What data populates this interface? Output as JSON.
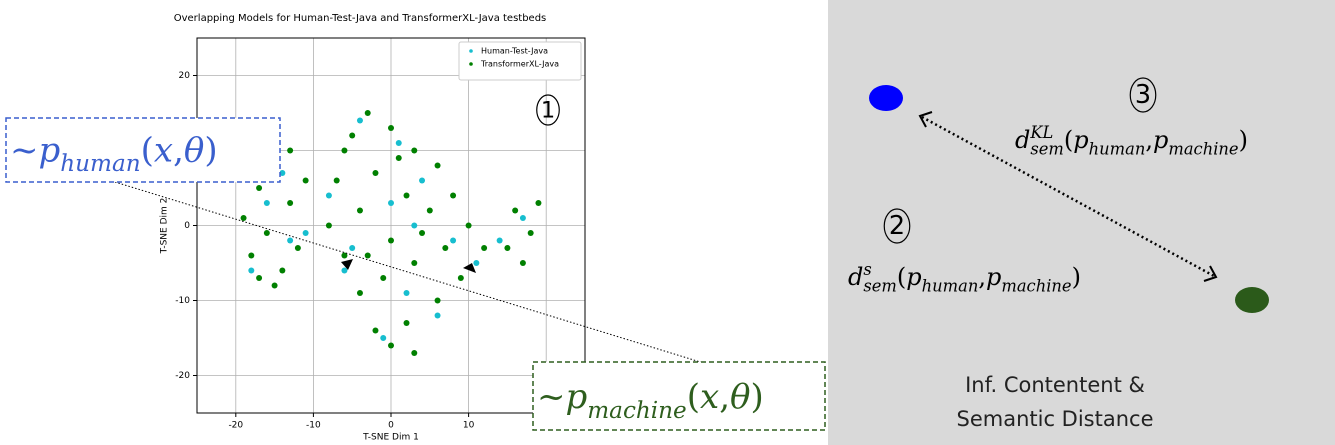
{
  "chart_data": {
    "type": "scatter",
    "title": "Overlapping Models for Human-Test-Java and TransformerXL-Java testbeds",
    "x_label": "T-SNE Dim 1",
    "y_label": "T-SNE Dim 2",
    "xlim": [
      -25,
      25
    ],
    "ylim": [
      -25,
      25
    ],
    "xticks": [
      -20,
      -10,
      0,
      10,
      20
    ],
    "yticks": [
      -20,
      -10,
      0,
      10,
      20
    ],
    "grid": true,
    "legend": "upper right",
    "series": [
      {
        "name": "Human-Test-Java",
        "color": "#17becf",
        "x": [
          -16,
          -13,
          -18,
          -14,
          -4,
          1,
          -6,
          -5,
          4,
          8,
          11,
          2,
          -1,
          0,
          -8,
          6,
          14,
          17,
          -11,
          3
        ],
        "y": [
          3,
          -2,
          -6,
          7,
          14,
          11,
          -6,
          -3,
          6,
          -2,
          -5,
          -9,
          -15,
          3,
          4,
          -12,
          -2,
          1,
          -1,
          0
        ]
      },
      {
        "name": "TransformerXL-Java",
        "color": "#008000",
        "x": [
          -17,
          -15,
          -13,
          -16,
          -18,
          -14,
          -12,
          -19,
          -11,
          -15,
          -13,
          -17,
          -5,
          -3,
          0,
          3,
          6,
          -7,
          -2,
          2,
          5,
          8,
          10,
          12,
          9,
          6,
          2,
          -2,
          -4,
          -6,
          -8,
          -4,
          0,
          3,
          -1,
          4,
          -3,
          7,
          1,
          -6,
          0,
          3,
          16,
          18,
          15,
          17,
          19
        ],
        "y": [
          5,
          8,
          3,
          -1,
          -4,
          -6,
          -3,
          1,
          6,
          -8,
          10,
          -7,
          12,
          15,
          13,
          10,
          8,
          6,
          7,
          4,
          2,
          4,
          0,
          -3,
          -7,
          -10,
          -13,
          -14,
          -9,
          -4,
          0,
          2,
          -2,
          -5,
          -7,
          -1,
          -4,
          -3,
          9,
          10,
          -16,
          -17,
          2,
          -1,
          -3,
          -5,
          3
        ]
      }
    ]
  },
  "annotations": {
    "plot_marker": "1",
    "human_box": [
      {
        "t": "~ ",
        "i": false
      },
      {
        "t": "p",
        "i": true
      },
      {
        "t": "human",
        "i": true,
        "pos": "sub"
      },
      {
        "t": "(",
        "i": false
      },
      {
        "t": "x",
        "i": true
      },
      {
        "t": ", ",
        "i": false
      },
      {
        "t": "θ",
        "i": true
      },
      {
        "t": ")",
        "i": false
      }
    ],
    "machine_box": [
      {
        "t": "~ ",
        "i": false
      },
      {
        "t": "p",
        "i": true
      },
      {
        "t": "machine",
        "i": true,
        "pos": "sub"
      },
      {
        "t": "(",
        "i": false
      },
      {
        "t": "x",
        "i": true
      },
      {
        "t": ", ",
        "i": false
      },
      {
        "t": "θ",
        "i": true
      },
      {
        "t": ")",
        "i": false
      }
    ]
  },
  "diagram": {
    "marker_kl": "3",
    "formula_kl": [
      {
        "t": "d",
        "i": true
      },
      {
        "t": "KL",
        "i": true,
        "pos": "sup"
      },
      {
        "t": "sem",
        "i": true,
        "pos": "sub"
      },
      {
        "t": "(",
        "i": false
      },
      {
        "t": "p",
        "i": true
      },
      {
        "t": "human",
        "i": true,
        "pos": "sub"
      },
      {
        "t": ", ",
        "i": false
      },
      {
        "t": "p",
        "i": true
      },
      {
        "t": "machine",
        "i": true,
        "pos": "sub"
      },
      {
        "t": ")",
        "i": false
      }
    ],
    "marker_s": "2",
    "formula_s": [
      {
        "t": "d",
        "i": true
      },
      {
        "t": "s",
        "i": true,
        "pos": "sup"
      },
      {
        "t": "sem",
        "i": true,
        "pos": "sub"
      },
      {
        "t": "(",
        "i": false
      },
      {
        "t": "p",
        "i": true
      },
      {
        "t": "human",
        "i": true,
        "pos": "sub"
      },
      {
        "t": ", ",
        "i": false
      },
      {
        "t": "p",
        "i": true
      },
      {
        "t": "machine",
        "i": true,
        "pos": "sub"
      },
      {
        "t": ")",
        "i": false
      }
    ],
    "caption": [
      "Inf. Contentent &",
      "Semantic Distance"
    ]
  }
}
